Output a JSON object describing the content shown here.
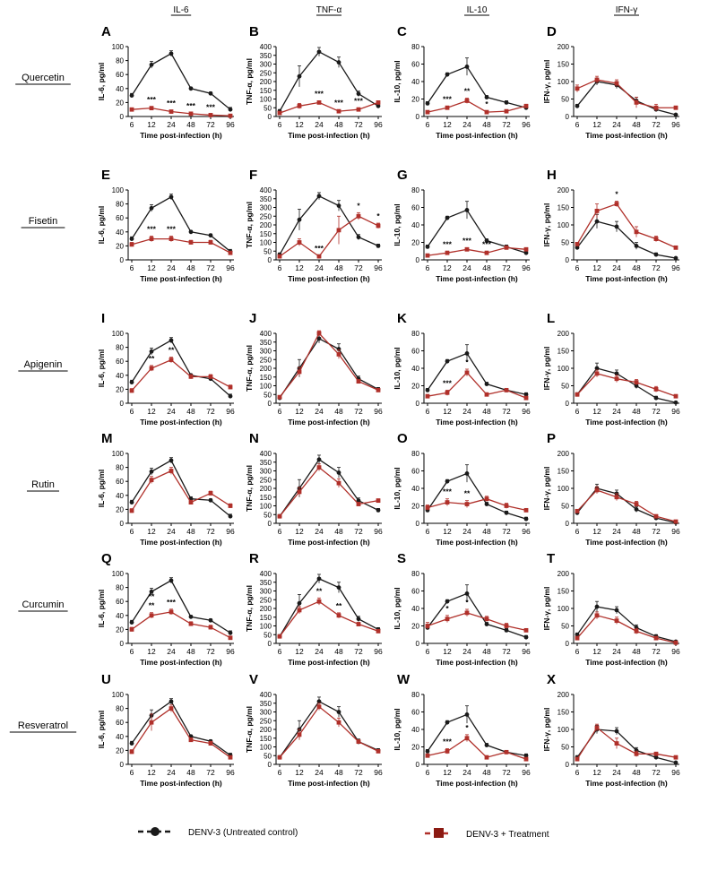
{
  "figure": {
    "column_titles": [
      "IL-6",
      "TNF-α",
      "IL-10",
      "IFN-γ"
    ],
    "row_labels": [
      "Quercetin",
      "Fisetin",
      "Apigenin",
      "Rutin",
      "Curcumin",
      "Resveratrol"
    ],
    "legend": {
      "control": "DENV-3 (Untreated control)",
      "treatment": "DENV-3 + Treatment"
    },
    "colors": {
      "control": "#1a1a1a",
      "treatment": "#b0302a"
    }
  },
  "chart_data": {
    "type": "line",
    "x": [
      6,
      12,
      24,
      48,
      72,
      96
    ],
    "xlabel": "Time post-infection (h)",
    "axes": [
      {
        "ylabel": "IL-6, pg/ml",
        "ylim": [
          0,
          100
        ],
        "yticks": [
          0,
          20,
          40,
          60,
          80,
          100
        ]
      },
      {
        "ylabel": "TNF-α, pg/ml",
        "ylim": [
          0,
          400
        ],
        "yticks": [
          0,
          50,
          100,
          150,
          200,
          250,
          300,
          350,
          400
        ]
      },
      {
        "ylabel": "IL-10, pg/ml",
        "ylim": [
          0,
          80
        ],
        "yticks": [
          0,
          20,
          40,
          60,
          80
        ]
      },
      {
        "ylabel": "IFN-γ, pg/ml",
        "ylim": [
          0,
          200
        ],
        "yticks": [
          0,
          50,
          100,
          150,
          200
        ]
      }
    ],
    "panels": [
      {
        "letter": "A",
        "row": 0,
        "col": 0,
        "control": [
          30,
          74,
          90,
          40,
          33,
          10
        ],
        "control_err": [
          3,
          5,
          4,
          2,
          2,
          3
        ],
        "treatment": [
          10,
          12,
          7,
          4,
          2,
          1
        ],
        "treatment_err": [
          2,
          2,
          2,
          1,
          1,
          1
        ],
        "annotations": [
          "***",
          "***",
          "***",
          "***"
        ],
        "annotation_x": [
          12,
          24,
          48,
          72
        ]
      },
      {
        "letter": "B",
        "row": 0,
        "col": 1,
        "control": [
          30,
          230,
          370,
          310,
          130,
          60
        ],
        "control_err": [
          10,
          60,
          25,
          30,
          15,
          10
        ],
        "treatment": [
          20,
          60,
          80,
          30,
          40,
          80
        ],
        "treatment_err": [
          5,
          15,
          10,
          8,
          10,
          10
        ],
        "annotations": [
          "***",
          "***",
          "***"
        ],
        "annotation_x": [
          24,
          48,
          72
        ]
      },
      {
        "letter": "C",
        "row": 0,
        "col": 2,
        "control": [
          15,
          48,
          57,
          22,
          16,
          10
        ],
        "control_err": [
          2,
          2,
          10,
          2,
          2,
          2
        ],
        "treatment": [
          5,
          10,
          18,
          5,
          6,
          12
        ],
        "treatment_err": [
          1,
          2,
          3,
          1,
          1,
          2
        ],
        "annotations": [
          "***",
          "**",
          "*"
        ],
        "annotation_x": [
          12,
          24,
          48
        ]
      },
      {
        "letter": "D",
        "row": 0,
        "col": 3,
        "control": [
          30,
          100,
          90,
          45,
          20,
          5
        ],
        "control_err": [
          5,
          10,
          10,
          10,
          5,
          3
        ],
        "treatment": [
          80,
          105,
          95,
          40,
          25,
          25
        ],
        "treatment_err": [
          10,
          10,
          10,
          15,
          10,
          5
        ],
        "annotations": [],
        "annotation_x": []
      },
      {
        "letter": "E",
        "row": 1,
        "col": 0,
        "control": [
          30,
          74,
          90,
          40,
          35,
          12
        ],
        "control_err": [
          3,
          5,
          4,
          2,
          2,
          3
        ],
        "treatment": [
          22,
          30,
          30,
          25,
          25,
          10
        ],
        "treatment_err": [
          3,
          4,
          4,
          3,
          3,
          2
        ],
        "annotations": [
          "***",
          "***"
        ],
        "annotation_x": [
          12,
          24
        ]
      },
      {
        "letter": "F",
        "row": 1,
        "col": 1,
        "control": [
          30,
          230,
          365,
          310,
          130,
          80
        ],
        "control_err": [
          10,
          60,
          20,
          30,
          15,
          10
        ],
        "treatment": [
          20,
          100,
          20,
          170,
          250,
          195
        ],
        "treatment_err": [
          5,
          20,
          5,
          80,
          20,
          15
        ],
        "annotations": [
          "***",
          "*",
          "*"
        ],
        "annotation_x": [
          24,
          72,
          96
        ]
      },
      {
        "letter": "G",
        "row": 1,
        "col": 2,
        "control": [
          15,
          48,
          57,
          22,
          15,
          8
        ],
        "control_err": [
          2,
          2,
          10,
          2,
          2,
          2
        ],
        "treatment": [
          5,
          8,
          12,
          8,
          14,
          12
        ],
        "treatment_err": [
          1,
          2,
          2,
          2,
          2,
          2
        ],
        "annotations": [
          "***",
          "***",
          "***"
        ],
        "annotation_x": [
          12,
          24,
          48
        ]
      },
      {
        "letter": "H",
        "row": 1,
        "col": 3,
        "control": [
          35,
          110,
          95,
          40,
          15,
          5
        ],
        "control_err": [
          5,
          20,
          15,
          10,
          5,
          3
        ],
        "treatment": [
          45,
          140,
          160,
          80,
          60,
          35
        ],
        "treatment_err": [
          5,
          20,
          8,
          15,
          8,
          5
        ],
        "annotations": [
          "*"
        ],
        "annotation_x": [
          24
        ]
      },
      {
        "letter": "I",
        "row": 2,
        "col": 0,
        "control": [
          30,
          74,
          90,
          40,
          35,
          10
        ],
        "control_err": [
          3,
          5,
          4,
          2,
          2,
          3
        ],
        "treatment": [
          18,
          50,
          62,
          38,
          38,
          23
        ],
        "treatment_err": [
          3,
          4,
          4,
          3,
          3,
          3
        ],
        "annotations": [
          "**",
          "**"
        ],
        "annotation_x": [
          12,
          24
        ]
      },
      {
        "letter": "J",
        "row": 2,
        "col": 1,
        "control": [
          30,
          200,
          370,
          310,
          140,
          80
        ],
        "control_err": [
          10,
          50,
          25,
          30,
          15,
          10
        ],
        "treatment": [
          35,
          180,
          400,
          280,
          125,
          75
        ],
        "treatment_err": [
          8,
          25,
          15,
          25,
          10,
          8
        ],
        "annotations": [],
        "annotation_x": []
      },
      {
        "letter": "K",
        "row": 2,
        "col": 2,
        "control": [
          15,
          48,
          57,
          22,
          15,
          10
        ],
        "control_err": [
          2,
          2,
          10,
          2,
          2,
          2
        ],
        "treatment": [
          8,
          12,
          35,
          10,
          15,
          6
        ],
        "treatment_err": [
          2,
          3,
          4,
          2,
          2,
          2
        ],
        "annotations": [
          "***",
          "*"
        ],
        "annotation_x": [
          12,
          24
        ]
      },
      {
        "letter": "L",
        "row": 2,
        "col": 3,
        "control": [
          25,
          100,
          85,
          50,
          15,
          2
        ],
        "control_err": [
          5,
          15,
          10,
          8,
          5,
          2
        ],
        "treatment": [
          25,
          85,
          70,
          60,
          40,
          20
        ],
        "treatment_err": [
          5,
          10,
          10,
          8,
          8,
          5
        ],
        "annotations": [],
        "annotation_x": []
      },
      {
        "letter": "M",
        "row": 3,
        "col": 0,
        "control": [
          30,
          74,
          90,
          35,
          33,
          10
        ],
        "control_err": [
          3,
          5,
          4,
          3,
          2,
          3
        ],
        "treatment": [
          18,
          62,
          75,
          30,
          43,
          25
        ],
        "treatment_err": [
          3,
          5,
          5,
          3,
          3,
          3
        ],
        "annotations": [],
        "annotation_x": []
      },
      {
        "letter": "N",
        "row": 3,
        "col": 1,
        "control": [
          40,
          200,
          365,
          290,
          130,
          75
        ],
        "control_err": [
          10,
          50,
          25,
          30,
          15,
          10
        ],
        "treatment": [
          40,
          180,
          320,
          230,
          110,
          130
        ],
        "treatment_err": [
          8,
          25,
          20,
          25,
          10,
          10
        ],
        "annotations": [],
        "annotation_x": []
      },
      {
        "letter": "O",
        "row": 3,
        "col": 2,
        "control": [
          15,
          48,
          57,
          22,
          12,
          5
        ],
        "control_err": [
          2,
          2,
          10,
          2,
          2,
          2
        ],
        "treatment": [
          18,
          24,
          22,
          28,
          20,
          15
        ],
        "treatment_err": [
          3,
          4,
          4,
          3,
          3,
          2
        ],
        "annotations": [
          "***",
          "**"
        ],
        "annotation_x": [
          12,
          24
        ]
      },
      {
        "letter": "P",
        "row": 3,
        "col": 3,
        "control": [
          30,
          100,
          85,
          40,
          15,
          2
        ],
        "control_err": [
          5,
          12,
          10,
          8,
          5,
          2
        ],
        "treatment": [
          35,
          95,
          75,
          55,
          20,
          5
        ],
        "treatment_err": [
          5,
          10,
          10,
          8,
          5,
          3
        ],
        "annotations": [],
        "annotation_x": []
      },
      {
        "letter": "Q",
        "row": 4,
        "col": 0,
        "control": [
          30,
          74,
          90,
          38,
          33,
          15
        ],
        "control_err": [
          3,
          5,
          4,
          2,
          2,
          3
        ],
        "treatment": [
          20,
          40,
          45,
          28,
          23,
          8
        ],
        "treatment_err": [
          3,
          4,
          4,
          3,
          3,
          2
        ],
        "annotations": [
          "**",
          "**",
          "***"
        ],
        "annotation_x": [
          12,
          12,
          24
        ]
      },
      {
        "letter": "R",
        "row": 4,
        "col": 1,
        "control": [
          40,
          230,
          370,
          320,
          140,
          80
        ],
        "control_err": [
          10,
          50,
          25,
          30,
          15,
          10
        ],
        "treatment": [
          40,
          190,
          240,
          160,
          110,
          70
        ],
        "treatment_err": [
          8,
          20,
          20,
          15,
          10,
          8
        ],
        "annotations": [
          "**",
          "**"
        ],
        "annotation_x": [
          24,
          48
        ]
      },
      {
        "letter": "S",
        "row": 4,
        "col": 2,
        "control": [
          18,
          48,
          57,
          22,
          15,
          7
        ],
        "control_err": [
          2,
          2,
          10,
          2,
          2,
          2
        ],
        "treatment": [
          20,
          28,
          35,
          28,
          20,
          15
        ],
        "treatment_err": [
          4,
          4,
          4,
          3,
          3,
          2
        ],
        "annotations": [
          "*",
          "*"
        ],
        "annotation_x": [
          12,
          24
        ]
      },
      {
        "letter": "T",
        "row": 4,
        "col": 3,
        "control": [
          25,
          105,
          95,
          45,
          20,
          5
        ],
        "control_err": [
          5,
          15,
          10,
          8,
          5,
          3
        ],
        "treatment": [
          15,
          80,
          65,
          35,
          15,
          2
        ],
        "treatment_err": [
          5,
          10,
          10,
          8,
          5,
          2
        ],
        "annotations": [],
        "annotation_x": []
      },
      {
        "letter": "U",
        "row": 5,
        "col": 0,
        "control": [
          30,
          70,
          90,
          40,
          33,
          13
        ],
        "control_err": [
          3,
          8,
          4,
          2,
          2,
          3
        ],
        "treatment": [
          18,
          60,
          80,
          35,
          30,
          10
        ],
        "treatment_err": [
          3,
          12,
          5,
          3,
          3,
          2
        ],
        "annotations": [],
        "annotation_x": []
      },
      {
        "letter": "V",
        "row": 5,
        "col": 1,
        "control": [
          40,
          200,
          360,
          300,
          130,
          80
        ],
        "control_err": [
          10,
          50,
          25,
          30,
          15,
          10
        ],
        "treatment": [
          40,
          170,
          330,
          240,
          130,
          75
        ],
        "treatment_err": [
          8,
          30,
          20,
          25,
          10,
          8
        ],
        "annotations": [],
        "annotation_x": []
      },
      {
        "letter": "W",
        "row": 5,
        "col": 2,
        "control": [
          15,
          48,
          57,
          22,
          14,
          10
        ],
        "control_err": [
          2,
          2,
          10,
          2,
          2,
          2
        ],
        "treatment": [
          10,
          15,
          30,
          8,
          14,
          6
        ],
        "treatment_err": [
          2,
          3,
          4,
          2,
          2,
          2
        ],
        "annotations": [
          "***",
          "*"
        ],
        "annotation_x": [
          12,
          24
        ]
      },
      {
        "letter": "X",
        "row": 5,
        "col": 3,
        "control": [
          20,
          100,
          95,
          40,
          20,
          5
        ],
        "control_err": [
          5,
          12,
          10,
          8,
          5,
          3
        ],
        "treatment": [
          15,
          105,
          60,
          30,
          30,
          20
        ],
        "treatment_err": [
          5,
          10,
          15,
          8,
          5,
          5
        ],
        "annotations": [],
        "annotation_x": []
      }
    ]
  }
}
